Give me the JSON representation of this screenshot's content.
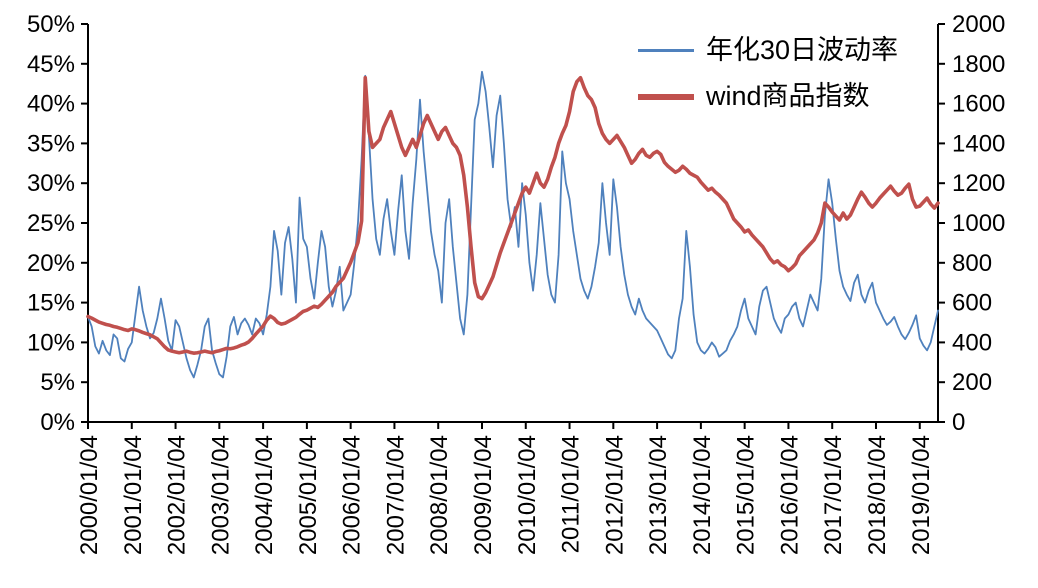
{
  "chart_data": {
    "type": "line",
    "title": "",
    "x_frequency": "monthly",
    "x_start": "2000/01",
    "x_tick_every": 12,
    "x_tick_labels": [
      "2000/01/04",
      "2001/01/04",
      "2002/01/04",
      "2003/01/04",
      "2004/01/04",
      "2005/01/04",
      "2006/01/04",
      "2007/01/04",
      "2008/01/04",
      "2009/01/04",
      "2010/01/04",
      "2011/01/04",
      "2012/01/04",
      "2013/01/04",
      "2014/01/04",
      "2015/01/04",
      "2016/01/04",
      "2017/01/04",
      "2018/01/04",
      "2019/01/04"
    ],
    "left_axis": {
      "min": 0,
      "max": 50,
      "step": 5,
      "unit": "%",
      "tick_labels": [
        "0%",
        "5%",
        "10%",
        "15%",
        "20%",
        "25%",
        "30%",
        "35%",
        "40%",
        "45%",
        "50%"
      ]
    },
    "right_axis": {
      "min": 0,
      "max": 2000,
      "step": 200,
      "tick_labels": [
        "0",
        "200",
        "400",
        "600",
        "800",
        "1000",
        "1200",
        "1400",
        "1600",
        "1800",
        "2000"
      ]
    },
    "legend_position": "top-right",
    "grid": false,
    "series": [
      {
        "name": "年化30日波动率",
        "axis": "left",
        "color": "#4F81BD",
        "line_width": 1.8,
        "values": [
          13.2,
          12.0,
          9.5,
          8.6,
          10.2,
          9.0,
          8.4,
          11.0,
          10.5,
          8.0,
          7.6,
          9.2,
          10.0,
          13.5,
          17.0,
          14.0,
          12.0,
          10.5,
          11.2,
          13.0,
          15.5,
          13.0,
          10.2,
          9.0,
          12.8,
          12.0,
          10.0,
          8.0,
          6.5,
          5.6,
          7.2,
          9.0,
          12.0,
          13.0,
          9.0,
          7.4,
          6.0,
          5.6,
          8.2,
          12.0,
          13.2,
          11.0,
          12.4,
          13.0,
          12.2,
          11.0,
          13.0,
          12.4,
          11.0,
          13.5,
          17.0,
          24.0,
          21.5,
          16.0,
          22.5,
          24.5,
          20.5,
          15.0,
          28.2,
          23.0,
          22.0,
          18.0,
          15.5,
          20.0,
          24.0,
          22.0,
          17.0,
          14.5,
          16.5,
          19.5,
          14.0,
          15.0,
          16.0,
          20.0,
          25.0,
          33.0,
          43.5,
          36.0,
          28.0,
          23.0,
          21.0,
          25.5,
          28.0,
          24.0,
          21.0,
          26.5,
          31.0,
          24.0,
          20.5,
          27.5,
          33.0,
          40.5,
          34.0,
          29.0,
          24.0,
          21.0,
          19.0,
          15.0,
          25.0,
          28.0,
          22.0,
          17.5,
          13.0,
          11.0,
          16.0,
          27.0,
          38.0,
          40.0,
          44.0,
          41.5,
          37.0,
          32.0,
          38.5,
          41.0,
          35.0,
          28.0,
          24.5,
          27.0,
          22.0,
          30.0,
          26.0,
          20.0,
          16.5,
          21.0,
          27.5,
          23.0,
          18.5,
          16.0,
          15.0,
          21.0,
          34.0,
          30.0,
          28.0,
          24.0,
          21.0,
          18.0,
          16.5,
          15.5,
          17.0,
          19.5,
          22.5,
          30.0,
          25.0,
          21.0,
          30.5,
          27.0,
          22.0,
          18.5,
          16.0,
          14.5,
          13.5,
          15.5,
          14.0,
          13.0,
          12.5,
          12.0,
          11.5,
          10.5,
          9.5,
          8.5,
          8.0,
          9.0,
          13.0,
          15.5,
          24.0,
          19.5,
          13.5,
          10.0,
          9.0,
          8.6,
          9.2,
          10.0,
          9.4,
          8.2,
          8.6,
          9.0,
          10.2,
          11.0,
          12.0,
          14.0,
          15.5,
          13.0,
          12.0,
          11.0,
          14.5,
          16.5,
          17.0,
          15.0,
          13.0,
          12.0,
          11.2,
          13.0,
          13.5,
          14.5,
          15.0,
          13.0,
          12.0,
          14.0,
          16.0,
          15.0,
          14.0,
          18.0,
          26.0,
          30.5,
          27.5,
          23.0,
          19.0,
          17.0,
          16.0,
          15.2,
          17.5,
          18.5,
          16.0,
          15.0,
          16.5,
          17.5,
          15.0,
          14.0,
          13.0,
          12.2,
          12.6,
          13.2,
          12.0,
          11.0,
          10.4,
          11.2,
          12.2,
          13.4,
          10.5,
          9.6,
          9.0,
          10.0,
          12.0,
          14.0
        ]
      },
      {
        "name": "wind商品指数",
        "axis": "right",
        "color": "#C0504D",
        "line_width": 3.6,
        "values": [
          530,
          522,
          512,
          502,
          496,
          490,
          486,
          480,
          476,
          470,
          464,
          460,
          468,
          464,
          458,
          450,
          444,
          438,
          428,
          418,
          398,
          378,
          362,
          356,
          352,
          348,
          352,
          356,
          350,
          346,
          348,
          352,
          356,
          352,
          348,
          354,
          358,
          364,
          370,
          368,
          372,
          378,
          386,
          392,
          402,
          420,
          442,
          462,
          482,
          512,
          532,
          520,
          500,
          492,
          496,
          506,
          516,
          526,
          542,
          556,
          562,
          572,
          582,
          576,
          592,
          612,
          632,
          652,
          682,
          702,
          722,
          762,
          802,
          852,
          902,
          1010,
          1730,
          1460,
          1380,
          1400,
          1420,
          1480,
          1520,
          1560,
          1500,
          1440,
          1380,
          1340,
          1380,
          1420,
          1380,
          1440,
          1500,
          1540,
          1500,
          1460,
          1420,
          1460,
          1480,
          1440,
          1400,
          1380,
          1340,
          1240,
          1080,
          880,
          700,
          630,
          620,
          650,
          690,
          730,
          790,
          850,
          900,
          950,
          1000,
          1050,
          1100,
          1150,
          1180,
          1150,
          1200,
          1250,
          1200,
          1180,
          1220,
          1280,
          1330,
          1400,
          1450,
          1490,
          1560,
          1660,
          1710,
          1730,
          1680,
          1640,
          1620,
          1580,
          1500,
          1450,
          1420,
          1400,
          1420,
          1440,
          1410,
          1380,
          1340,
          1300,
          1320,
          1350,
          1370,
          1340,
          1330,
          1350,
          1360,
          1345,
          1305,
          1285,
          1270,
          1255,
          1265,
          1285,
          1270,
          1250,
          1240,
          1230,
          1205,
          1185,
          1165,
          1175,
          1155,
          1140,
          1120,
          1100,
          1060,
          1020,
          1000,
          980,
          955,
          965,
          940,
          920,
          900,
          880,
          850,
          820,
          800,
          810,
          790,
          780,
          760,
          775,
          795,
          835,
          855,
          875,
          895,
          915,
          950,
          1000,
          1100,
          1080,
          1055,
          1035,
          1015,
          1050,
          1020,
          1040,
          1080,
          1120,
          1155,
          1130,
          1100,
          1080,
          1100,
          1125,
          1145,
          1165,
          1185,
          1160,
          1140,
          1150,
          1175,
          1195,
          1120,
          1080,
          1085,
          1105,
          1125,
          1095,
          1075,
          1100
        ]
      }
    ]
  }
}
